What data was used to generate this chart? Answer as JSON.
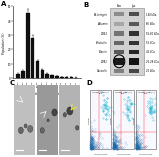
{
  "panel_A": {
    "label": "A",
    "bar_values": [
      3,
      5,
      45,
      28,
      12,
      6,
      3,
      2,
      1.5,
      1,
      1,
      0.8,
      0.5
    ],
    "bar_color": "#111111",
    "xlabel": "Particle diameter (nm)",
    "ylabel": "Population (%)",
    "xtick_labels": [
      "<40",
      "40-50",
      "50-60",
      "60-70",
      "70-80",
      "80-90",
      "90-100",
      "100-110",
      "110-120",
      "120-130",
      "130-140",
      "140-150",
      ">150"
    ],
    "ylim": [
      0,
      50
    ],
    "yticks": [
      0,
      10,
      20,
      30,
      40,
      50
    ],
    "errors": [
      0.5,
      0.8,
      3.0,
      2.0,
      1.0,
      0.5,
      0.3,
      0.2,
      0.2,
      0.1,
      0.1,
      0.1,
      0.1
    ]
  },
  "panel_B": {
    "label": "B",
    "col_labels": [
      "Exo",
      "Lys"
    ],
    "band_labels_left": [
      "B1-Integrin",
      "Albumin",
      "CD63",
      "B-tubulin",
      "B-actin",
      "CD81",
      "Caveolin"
    ],
    "band_labels_right": [
      "140 kDa",
      "66 kDa",
      "55-60 kDa",
      "55 kDa",
      "45 kDa",
      "26-28 kDa",
      "20 kDa"
    ],
    "exo_gray": [
      0.55,
      0.65,
      0.45,
      0.4,
      0.35,
      0.1,
      0.5
    ],
    "lys_gray": [
      0.3,
      0.35,
      0.2,
      0.2,
      0.15,
      0.08,
      0.28
    ],
    "blot_bg": 0.82,
    "cd81_circle_idx": 5
  },
  "panel_C": {
    "label": "C",
    "bg_grays": [
      0.75,
      0.6,
      0.7
    ]
  },
  "panel_D": {
    "label": "D",
    "titles": [
      "Annex+ CD63(+)\n62%",
      "Annex+ CD64(+)\n73%",
      "Annex+ CD81(+)\n66%"
    ],
    "xlabel": "Annexin V FITC",
    "ylabels": [
      "CD63-PE",
      "CD64-PE",
      "CD81-PE"
    ],
    "bg_color": "#f8f8ff",
    "dot_color": "#1a6aaa",
    "cluster_color": "#00aacc"
  },
  "bg_color": "#ffffff",
  "label_fontsize": 5,
  "label_fontweight": "bold"
}
